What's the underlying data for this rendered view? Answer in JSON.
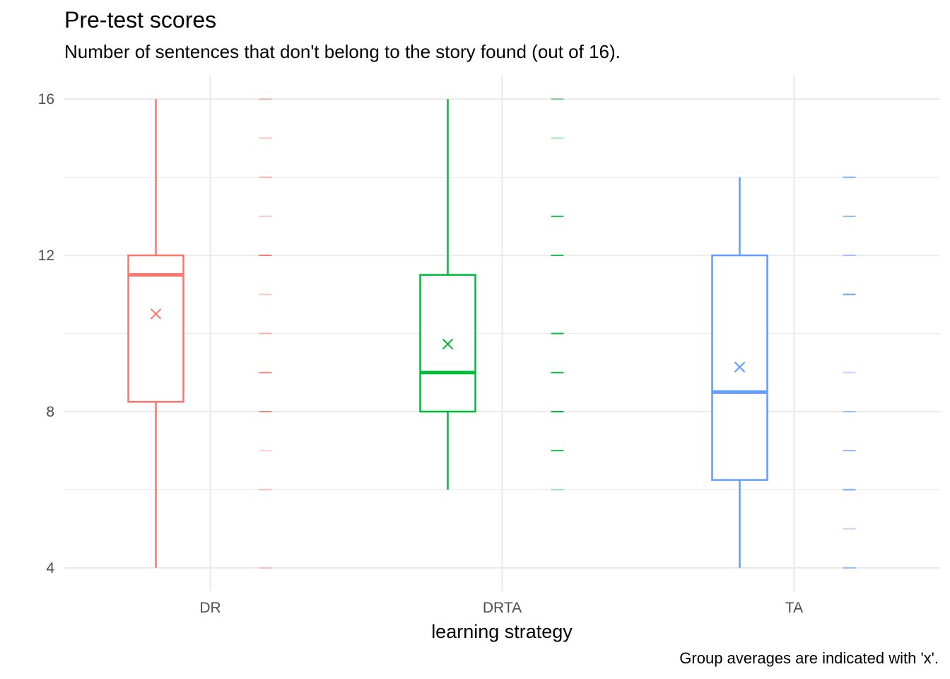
{
  "chart_data": {
    "type": "boxplot",
    "title": "Pre-test scores",
    "subtitle": "Number of sentences that don't belong to the story found (out of 16).",
    "caption": "Group averages are indicated with 'x'.",
    "xlabel": "learning strategy",
    "ylabel": "",
    "ylim": [
      3.4,
      16.6
    ],
    "y_ticks": [
      4,
      8,
      12,
      16
    ],
    "y_tick_labels": [
      "4",
      "8",
      "12",
      "16"
    ],
    "grid": true,
    "legend": "none",
    "categories": [
      "DR",
      "DRTA",
      "TA"
    ],
    "colors": [
      "#F8766D",
      "#00BA38",
      "#619CFF"
    ],
    "series": [
      {
        "category": "DR",
        "min": 4,
        "q1": 8.25,
        "median": 11.5,
        "q3": 12,
        "max": 16,
        "mean": 10.5,
        "observed_values": [
          4,
          6,
          7,
          8,
          9,
          10,
          11,
          12,
          13,
          14,
          15,
          16
        ],
        "value_weights": [
          0.35,
          0.45,
          0.35,
          0.85,
          0.85,
          0.5,
          0.4,
          1.0,
          0.4,
          0.55,
          0.4,
          0.45
        ]
      },
      {
        "category": "DRTA",
        "min": 6,
        "q1": 8,
        "median": 9,
        "q3": 11.5,
        "max": 16,
        "mean": 9.73,
        "observed_values": [
          6,
          7,
          8,
          9,
          10,
          12,
          13,
          15,
          16
        ],
        "value_weights": [
          0.35,
          0.9,
          1.0,
          0.95,
          0.95,
          0.85,
          0.9,
          0.35,
          0.5
        ]
      },
      {
        "category": "TA",
        "min": 4,
        "q1": 6.25,
        "median": 8.5,
        "q3": 12,
        "max": 14,
        "mean": 9.14,
        "observed_values": [
          4,
          5,
          6,
          7,
          8,
          9,
          11,
          12,
          13,
          14
        ],
        "value_weights": [
          0.6,
          0.4,
          0.9,
          0.7,
          0.6,
          0.4,
          0.9,
          0.55,
          0.7,
          0.8
        ]
      }
    ]
  }
}
